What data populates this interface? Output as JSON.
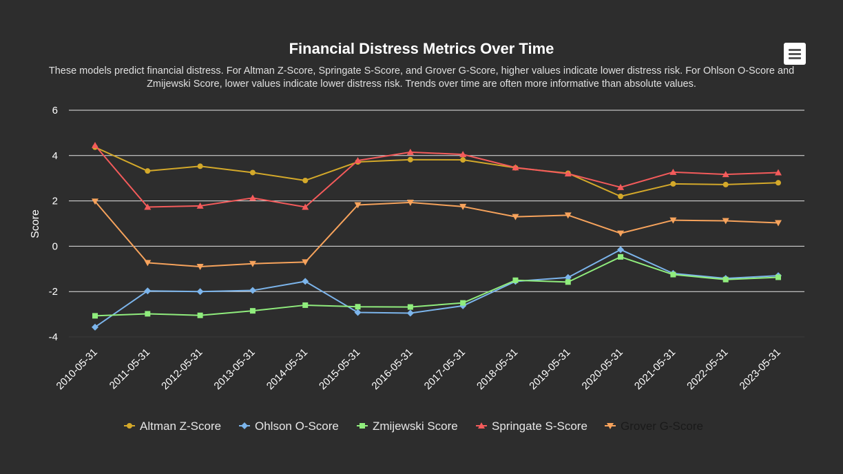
{
  "header": {
    "title": "Financial Distress Metrics Over Time",
    "subtitle": "These models predict financial distress. For Altman Z-Score, Springate S-Score, and Grover G-Score, higher values indicate lower distress risk. For Ohlson O-Score and Zmijewski Score, lower values indicate lower distress risk. Trends over time are often more informative than absolute values."
  },
  "chart_data": {
    "type": "line",
    "title": "Financial Distress Metrics Over Time",
    "ylabel": "Score",
    "xlabel": "",
    "ylim": [
      -4,
      6
    ],
    "yticks": [
      -4,
      -2,
      0,
      2,
      4,
      6
    ],
    "grid": true,
    "legend_position": "bottom",
    "categories": [
      "2010-05-31",
      "2011-05-31",
      "2012-05-31",
      "2013-05-31",
      "2014-05-31",
      "2015-05-31",
      "2016-05-31",
      "2017-05-31",
      "2018-05-31",
      "2019-05-31",
      "2020-05-31",
      "2021-05-31",
      "2022-05-31",
      "2023-05-31"
    ],
    "series": [
      {
        "name": "Altman Z-Score",
        "color": "#d4a92a",
        "marker": "circle",
        "values": [
          4.37,
          3.32,
          3.53,
          3.25,
          2.9,
          3.72,
          3.82,
          3.81,
          3.46,
          3.22,
          2.2,
          2.75,
          2.72,
          2.8
        ]
      },
      {
        "name": "Ohlson O-Score",
        "color": "#7cb5ec",
        "marker": "diamond",
        "values": [
          -3.57,
          -1.97,
          -2.0,
          -1.95,
          -1.55,
          -2.92,
          -2.95,
          -2.63,
          -1.55,
          -1.38,
          -0.15,
          -1.2,
          -1.42,
          -1.3
        ]
      },
      {
        "name": "Zmijewski Score",
        "color": "#90ed7d",
        "marker": "square",
        "values": [
          -3.07,
          -2.98,
          -3.05,
          -2.85,
          -2.6,
          -2.67,
          -2.68,
          -2.5,
          -1.5,
          -1.58,
          -0.47,
          -1.25,
          -1.47,
          -1.37
        ]
      },
      {
        "name": "Springate S-Score",
        "color": "#f45b5b",
        "marker": "triangle",
        "values": [
          4.45,
          1.73,
          1.78,
          2.13,
          1.73,
          3.78,
          4.15,
          4.05,
          3.47,
          3.2,
          2.6,
          3.27,
          3.17,
          3.25
        ]
      },
      {
        "name": "Grover G-Score",
        "color": "#f7a35c",
        "marker": "triangle-down",
        "values": [
          1.98,
          -0.73,
          -0.9,
          -0.77,
          -0.7,
          1.82,
          1.93,
          1.75,
          1.3,
          1.37,
          0.57,
          1.15,
          1.12,
          1.03
        ]
      }
    ]
  },
  "legend": {
    "items": [
      {
        "label": "Altman Z-Score",
        "text_color": "#e6e6e6"
      },
      {
        "label": "Ohlson O-Score",
        "text_color": "#e6e6e6"
      },
      {
        "label": "Zmijewski Score",
        "text_color": "#e6e6e6"
      },
      {
        "label": "Springate S-Score",
        "text_color": "#e6e6e6"
      },
      {
        "label": "Grover G-Score",
        "text_color": "#1a1a1a"
      }
    ]
  },
  "menu": {
    "icon": "hamburger-menu-icon"
  }
}
